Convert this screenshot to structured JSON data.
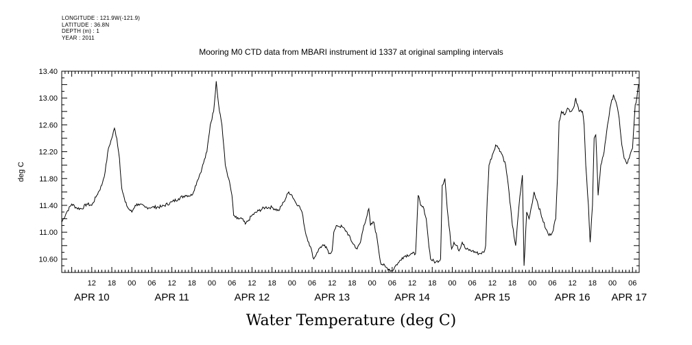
{
  "header": {
    "longitude": "LONGITUDE : 121.9W(-121.9)",
    "latitude": "LATITUDE : 36.8N",
    "depth": "DEPTH (m) : 1",
    "year": "YEAR : 2011"
  },
  "chart_data": {
    "type": "line",
    "title": "Mooring M0 CTD data from MBARI instrument id 1337 at original sampling intervals",
    "xlabel": "Water Temperature (deg C)",
    "ylabel": "deg C",
    "ylim": [
      10.4,
      13.4
    ],
    "xlim_hours": [
      3,
      176
    ],
    "yticks": [
      "10.60",
      "11.00",
      "11.40",
      "11.80",
      "12.20",
      "12.60",
      "13.00",
      "13.40"
    ],
    "hour_ticks": [
      {
        "h": 12,
        "label": "12"
      },
      {
        "h": 18,
        "label": "18"
      },
      {
        "h": 24,
        "label": "00"
      },
      {
        "h": 30,
        "label": "06"
      },
      {
        "h": 36,
        "label": "12"
      },
      {
        "h": 42,
        "label": "18"
      },
      {
        "h": 48,
        "label": "00"
      },
      {
        "h": 54,
        "label": "06"
      },
      {
        "h": 60,
        "label": "12"
      },
      {
        "h": 66,
        "label": "18"
      },
      {
        "h": 72,
        "label": "00"
      },
      {
        "h": 78,
        "label": "06"
      },
      {
        "h": 84,
        "label": "12"
      },
      {
        "h": 90,
        "label": "18"
      },
      {
        "h": 96,
        "label": "00"
      },
      {
        "h": 102,
        "label": "06"
      },
      {
        "h": 108,
        "label": "12"
      },
      {
        "h": 114,
        "label": "18"
      },
      {
        "h": 120,
        "label": "00"
      },
      {
        "h": 126,
        "label": "06"
      },
      {
        "h": 132,
        "label": "12"
      },
      {
        "h": 138,
        "label": "18"
      },
      {
        "h": 144,
        "label": "00"
      },
      {
        "h": 150,
        "label": "06"
      },
      {
        "h": 156,
        "label": "12"
      },
      {
        "h": 162,
        "label": "18"
      },
      {
        "h": 168,
        "label": "00"
      },
      {
        "h": 174,
        "label": "06"
      }
    ],
    "day_labels": [
      {
        "h": 12,
        "label": "APR 10"
      },
      {
        "h": 36,
        "label": "APR 11"
      },
      {
        "h": 60,
        "label": "APR 12"
      },
      {
        "h": 84,
        "label": "APR 13"
      },
      {
        "h": 108,
        "label": "APR 14"
      },
      {
        "h": 132,
        "label": "APR 15"
      },
      {
        "h": 156,
        "label": "APR 16"
      },
      {
        "h": 173,
        "label": "APR 17"
      }
    ],
    "series": [
      {
        "points": [
          [
            3.0,
            11.15
          ],
          [
            4.5,
            11.3
          ],
          [
            6.0,
            11.42
          ],
          [
            7.5,
            11.36
          ],
          [
            9.0,
            11.35
          ],
          [
            10.5,
            11.42
          ],
          [
            12.0,
            11.4
          ],
          [
            13.5,
            11.55
          ],
          [
            15.0,
            11.7
          ],
          [
            16.0,
            11.9
          ],
          [
            17.0,
            12.25
          ],
          [
            18.0,
            12.4
          ],
          [
            18.8,
            12.55
          ],
          [
            19.5,
            12.4
          ],
          [
            20.3,
            12.1
          ],
          [
            21.0,
            11.65
          ],
          [
            22.0,
            11.45
          ],
          [
            23.0,
            11.35
          ],
          [
            24.0,
            11.3
          ],
          [
            25.0,
            11.4
          ],
          [
            26.0,
            11.42
          ],
          [
            28.0,
            11.37
          ],
          [
            30.0,
            11.37
          ],
          [
            33.0,
            11.38
          ],
          [
            36.0,
            11.45
          ],
          [
            38.0,
            11.5
          ],
          [
            40.0,
            11.55
          ],
          [
            42.0,
            11.55
          ],
          [
            43.5,
            11.75
          ],
          [
            45.0,
            11.95
          ],
          [
            46.5,
            12.2
          ],
          [
            47.5,
            12.6
          ],
          [
            48.5,
            12.8
          ],
          [
            49.3,
            13.25
          ],
          [
            50.0,
            12.9
          ],
          [
            51.0,
            12.6
          ],
          [
            52.0,
            12.0
          ],
          [
            53.0,
            11.8
          ],
          [
            54.0,
            11.55
          ],
          [
            54.5,
            11.25
          ],
          [
            55.5,
            11.2
          ],
          [
            57.0,
            11.2
          ],
          [
            58.0,
            11.12
          ],
          [
            59.0,
            11.18
          ],
          [
            60.0,
            11.25
          ],
          [
            62.0,
            11.32
          ],
          [
            64.0,
            11.37
          ],
          [
            66.0,
            11.37
          ],
          [
            68.0,
            11.32
          ],
          [
            69.5,
            11.45
          ],
          [
            71.0,
            11.6
          ],
          [
            72.0,
            11.55
          ],
          [
            73.0,
            11.45
          ],
          [
            74.0,
            11.4
          ],
          [
            75.0,
            11.3
          ],
          [
            76.0,
            11.0
          ],
          [
            77.0,
            10.85
          ],
          [
            78.0,
            10.7
          ],
          [
            78.5,
            10.6
          ],
          [
            79.5,
            10.7
          ],
          [
            80.5,
            10.78
          ],
          [
            81.5,
            10.8
          ],
          [
            82.5,
            10.75
          ],
          [
            83.0,
            10.68
          ],
          [
            84.0,
            10.72
          ],
          [
            84.5,
            11.0
          ],
          [
            85.5,
            11.1
          ],
          [
            87.0,
            11.08
          ],
          [
            88.5,
            11.0
          ],
          [
            90.0,
            10.85
          ],
          [
            91.5,
            10.75
          ],
          [
            92.5,
            10.85
          ],
          [
            93.5,
            11.1
          ],
          [
            94.5,
            11.25
          ],
          [
            95.0,
            11.35
          ],
          [
            95.5,
            11.1
          ],
          [
            96.5,
            11.15
          ],
          [
            97.5,
            10.9
          ],
          [
            98.5,
            10.55
          ],
          [
            100.0,
            10.48
          ],
          [
            101.0,
            10.45
          ],
          [
            102.0,
            10.42
          ],
          [
            103.0,
            10.5
          ],
          [
            104.0,
            10.55
          ],
          [
            105.0,
            10.62
          ],
          [
            106.0,
            10.65
          ],
          [
            108.0,
            10.68
          ],
          [
            109.0,
            10.68
          ],
          [
            109.8,
            11.55
          ],
          [
            110.5,
            11.4
          ],
          [
            111.5,
            11.35
          ],
          [
            112.2,
            11.2
          ],
          [
            112.8,
            10.9
          ],
          [
            113.5,
            10.6
          ],
          [
            115.0,
            10.55
          ],
          [
            116.5,
            10.6
          ],
          [
            117.0,
            11.7
          ],
          [
            117.8,
            11.8
          ],
          [
            118.5,
            11.35
          ],
          [
            119.0,
            11.1
          ],
          [
            119.8,
            10.75
          ],
          [
            120.5,
            10.85
          ],
          [
            121.5,
            10.8
          ],
          [
            122.0,
            10.72
          ],
          [
            123.0,
            10.85
          ],
          [
            124.0,
            10.75
          ],
          [
            126.0,
            10.72
          ],
          [
            128.0,
            10.68
          ],
          [
            129.5,
            10.7
          ],
          [
            130.0,
            10.8
          ],
          [
            130.5,
            11.5
          ],
          [
            131.0,
            12.0
          ],
          [
            132.0,
            12.15
          ],
          [
            133.0,
            12.3
          ],
          [
            134.0,
            12.25
          ],
          [
            135.0,
            12.15
          ],
          [
            136.0,
            12.0
          ],
          [
            137.0,
            11.6
          ],
          [
            138.0,
            11.1
          ],
          [
            139.0,
            10.8
          ],
          [
            140.0,
            11.4
          ],
          [
            141.0,
            11.85
          ],
          [
            141.5,
            10.5
          ],
          [
            142.3,
            11.3
          ],
          [
            143.0,
            11.2
          ],
          [
            143.8,
            11.4
          ],
          [
            144.5,
            11.6
          ],
          [
            145.5,
            11.45
          ],
          [
            147.0,
            11.2
          ],
          [
            148.0,
            11.05
          ],
          [
            149.0,
            10.95
          ],
          [
            150.0,
            11.0
          ],
          [
            151.0,
            11.2
          ],
          [
            151.5,
            11.8
          ],
          [
            152.0,
            12.65
          ],
          [
            152.7,
            12.8
          ],
          [
            153.5,
            12.75
          ],
          [
            154.5,
            12.85
          ],
          [
            155.5,
            12.8
          ],
          [
            156.3,
            12.85
          ],
          [
            157.0,
            13.0
          ],
          [
            158.0,
            12.8
          ],
          [
            159.0,
            12.8
          ],
          [
            159.5,
            12.6
          ],
          [
            160.0,
            12.0
          ],
          [
            160.8,
            11.4
          ],
          [
            161.3,
            10.85
          ],
          [
            162.0,
            11.4
          ],
          [
            162.5,
            12.4
          ],
          [
            163.0,
            12.45
          ],
          [
            163.7,
            11.55
          ],
          [
            164.5,
            12.0
          ],
          [
            165.5,
            12.2
          ],
          [
            166.5,
            12.6
          ],
          [
            167.5,
            12.9
          ],
          [
            168.3,
            13.05
          ],
          [
            169.0,
            12.95
          ],
          [
            170.0,
            12.7
          ],
          [
            170.8,
            12.3
          ],
          [
            171.5,
            12.1
          ],
          [
            172.3,
            12.02
          ],
          [
            173.0,
            12.1
          ],
          [
            174.0,
            12.25
          ],
          [
            174.8,
            12.9
          ],
          [
            175.3,
            13.0
          ],
          [
            175.8,
            13.2
          ]
        ]
      }
    ]
  }
}
